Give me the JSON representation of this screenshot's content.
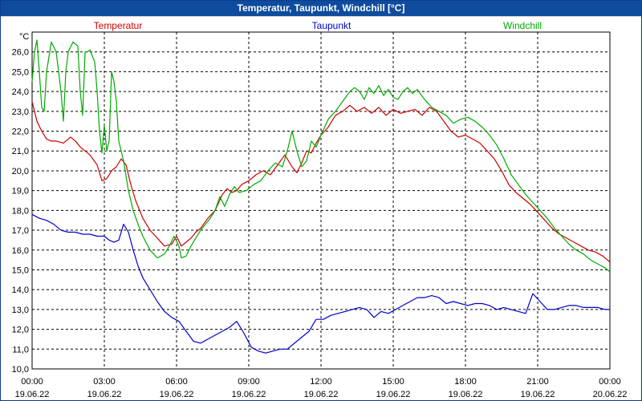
{
  "window": {
    "title": "Temperatur, Taupunkt, Windchill [°C]"
  },
  "colors": {
    "titlebar": "#0f4c9e",
    "temperature": "#cc0000",
    "dewpoint": "#0000cc",
    "windchill": "#00aa00",
    "grid": "#000000"
  },
  "chart_data": {
    "type": "line",
    "title": "Temperatur, Taupunkt, Windchill [°C]",
    "ylabel": "°C",
    "ylim": [
      10.0,
      27.0
    ],
    "xlim": [
      0,
      24
    ],
    "grid": true,
    "y_ticks": [
      "10,0",
      "11,0",
      "12,0",
      "13,0",
      "14,0",
      "15,0",
      "16,0",
      "17,0",
      "18,0",
      "19,0",
      "20,0",
      "21,0",
      "22,0",
      "23,0",
      "24,0",
      "25,0",
      "26,0"
    ],
    "x_ticks": [
      {
        "time": "00:00",
        "date": "19.06.22"
      },
      {
        "time": "03:00",
        "date": "19.06.22"
      },
      {
        "time": "06:00",
        "date": "19.06.22"
      },
      {
        "time": "09:00",
        "date": "19.06.22"
      },
      {
        "time": "12:00",
        "date": "19.06.22"
      },
      {
        "time": "15:00",
        "date": "19.06.22"
      },
      {
        "time": "18:00",
        "date": "19.06.22"
      },
      {
        "time": "21:00",
        "date": "19.06.22"
      },
      {
        "time": "00:00",
        "date": "20.06.22"
      }
    ],
    "series": [
      {
        "name": "Temperatur",
        "color": "#cc0000",
        "legend_pos": "left",
        "x": [
          0,
          0.2,
          0.4,
          0.6,
          0.8,
          1.0,
          1.3,
          1.6,
          1.8,
          2.0,
          2.2,
          2.4,
          2.7,
          2.9,
          3.1,
          3.3,
          3.5,
          3.7,
          3.9,
          4.1,
          4.3,
          4.6,
          4.9,
          5.2,
          5.5,
          5.8,
          6.0,
          6.2,
          6.4,
          6.6,
          6.8,
          7.0,
          7.3,
          7.6,
          7.9,
          8.1,
          8.3,
          8.5,
          8.7,
          9.0,
          9.3,
          9.6,
          9.9,
          10.2,
          10.5,
          10.8,
          11.0,
          11.2,
          11.4,
          11.6,
          11.8,
          12.0,
          12.3,
          12.6,
          12.9,
          13.2,
          13.5,
          13.8,
          14.1,
          14.4,
          14.7,
          15.0,
          15.3,
          15.6,
          15.9,
          16.2,
          16.5,
          16.8,
          17.1,
          17.4,
          17.7,
          18.0,
          18.3,
          18.6,
          18.9,
          19.2,
          19.5,
          19.8,
          20.1,
          20.4,
          20.7,
          21.0,
          21.3,
          21.6,
          21.9,
          22.2,
          22.5,
          22.8,
          23.1,
          23.4,
          23.7,
          24.0
        ],
        "values": [
          23.5,
          22.5,
          22.0,
          21.6,
          21.5,
          21.5,
          21.4,
          21.7,
          21.5,
          21.2,
          21.0,
          20.8,
          20.3,
          19.5,
          19.6,
          20.0,
          20.2,
          20.6,
          20.3,
          19.3,
          18.5,
          17.6,
          17.0,
          16.6,
          16.2,
          16.3,
          16.7,
          16.2,
          16.4,
          16.6,
          16.9,
          17.1,
          17.6,
          18.0,
          18.8,
          19.1,
          18.9,
          19.0,
          19.3,
          19.5,
          19.8,
          20.0,
          19.8,
          20.3,
          20.8,
          20.2,
          19.9,
          20.4,
          21.0,
          20.9,
          21.4,
          21.8,
          22.2,
          22.8,
          23.0,
          23.3,
          23.0,
          23.2,
          22.9,
          23.2,
          22.8,
          23.1,
          22.9,
          23.0,
          23.1,
          22.8,
          23.2,
          23.0,
          22.5,
          22.0,
          21.7,
          21.8,
          21.6,
          21.4,
          21.0,
          20.6,
          20.0,
          19.3,
          18.9,
          18.6,
          18.3,
          17.9,
          17.5,
          17.1,
          16.8,
          16.6,
          16.4,
          16.2,
          16.0,
          15.9,
          15.7,
          15.4
        ]
      },
      {
        "name": "Taupunkt",
        "color": "#0000cc",
        "legend_pos": "center",
        "x": [
          0,
          0.3,
          0.6,
          0.9,
          1.2,
          1.5,
          1.8,
          2.1,
          2.4,
          2.7,
          3.0,
          3.2,
          3.4,
          3.6,
          3.8,
          4.0,
          4.2,
          4.4,
          4.6,
          4.9,
          5.2,
          5.5,
          5.8,
          6.1,
          6.4,
          6.7,
          7.0,
          7.3,
          7.6,
          7.9,
          8.2,
          8.5,
          8.8,
          9.1,
          9.4,
          9.7,
          10.0,
          10.3,
          10.6,
          10.9,
          11.2,
          11.5,
          11.8,
          12.1,
          12.4,
          12.7,
          13.0,
          13.3,
          13.6,
          13.9,
          14.2,
          14.5,
          14.8,
          15.1,
          15.4,
          15.7,
          16.0,
          16.3,
          16.6,
          16.9,
          17.2,
          17.5,
          17.8,
          18.1,
          18.4,
          18.7,
          19.0,
          19.3,
          19.6,
          19.9,
          20.2,
          20.5,
          20.8,
          21.1,
          21.4,
          21.7,
          22.0,
          22.3,
          22.6,
          22.9,
          23.2,
          23.5,
          23.8,
          24.0
        ],
        "values": [
          17.8,
          17.6,
          17.5,
          17.3,
          17.0,
          16.9,
          16.9,
          16.8,
          16.8,
          16.7,
          16.7,
          16.5,
          16.4,
          16.5,
          17.3,
          16.9,
          16.0,
          15.2,
          14.6,
          14.0,
          13.4,
          12.9,
          12.6,
          12.4,
          11.9,
          11.4,
          11.3,
          11.5,
          11.7,
          11.9,
          12.1,
          12.4,
          11.8,
          11.1,
          10.9,
          10.8,
          10.9,
          11.0,
          11.0,
          11.3,
          11.6,
          11.9,
          12.5,
          12.5,
          12.7,
          12.8,
          12.9,
          13.0,
          13.1,
          13.0,
          12.6,
          12.9,
          12.8,
          13.0,
          13.2,
          13.4,
          13.6,
          13.6,
          13.7,
          13.6,
          13.3,
          13.4,
          13.3,
          13.2,
          13.3,
          13.3,
          13.2,
          13.0,
          13.1,
          13.0,
          12.9,
          12.8,
          13.8,
          13.4,
          13.0,
          13.0,
          13.1,
          13.2,
          13.2,
          13.1,
          13.1,
          13.1,
          13.0,
          13.0
        ]
      },
      {
        "name": "Windchill",
        "color": "#00aa00",
        "legend_pos": "right",
        "x": [
          0,
          0.1,
          0.2,
          0.3,
          0.4,
          0.5,
          0.6,
          0.8,
          1.0,
          1.1,
          1.2,
          1.3,
          1.4,
          1.5,
          1.7,
          1.9,
          2.0,
          2.1,
          2.2,
          2.3,
          2.4,
          2.6,
          2.7,
          2.8,
          2.9,
          3.0,
          3.1,
          3.2,
          3.3,
          3.4,
          3.5,
          3.6,
          3.8,
          4.0,
          4.2,
          4.4,
          4.6,
          4.9,
          5.2,
          5.5,
          5.7,
          5.9,
          6.1,
          6.2,
          6.4,
          6.6,
          6.8,
          7.0,
          7.2,
          7.4,
          7.6,
          7.8,
          8.0,
          8.2,
          8.4,
          8.6,
          8.9,
          9.2,
          9.5,
          9.8,
          10.1,
          10.4,
          10.6,
          10.8,
          11.0,
          11.2,
          11.4,
          11.6,
          11.8,
          12.0,
          12.3,
          12.6,
          12.9,
          13.2,
          13.4,
          13.6,
          13.8,
          14.0,
          14.2,
          14.4,
          14.6,
          14.8,
          15.0,
          15.2,
          15.4,
          15.6,
          15.8,
          16.0,
          16.3,
          16.6,
          16.9,
          17.2,
          17.5,
          17.8,
          18.1,
          18.4,
          18.7,
          19.0,
          19.3,
          19.6,
          19.9,
          20.2,
          20.5,
          20.8,
          21.1,
          21.4,
          21.7,
          22.0,
          22.3,
          22.6,
          22.9,
          23.2,
          23.5,
          23.8,
          24.0
        ],
        "values": [
          24.5,
          26.0,
          26.6,
          25.0,
          23.2,
          23.0,
          25.0,
          26.5,
          26.0,
          25.0,
          24.0,
          22.5,
          25.0,
          26.0,
          26.5,
          26.3,
          24.0,
          22.8,
          26.0,
          26.0,
          26.1,
          25.5,
          24.0,
          22.0,
          20.9,
          22.3,
          21.0,
          21.5,
          25.0,
          24.5,
          23.5,
          21.5,
          20.5,
          19.0,
          18.0,
          17.3,
          16.7,
          16.0,
          15.6,
          15.8,
          16.2,
          16.7,
          16.2,
          15.6,
          15.7,
          16.2,
          16.6,
          17.0,
          17.3,
          17.6,
          18.0,
          18.7,
          18.2,
          18.8,
          19.2,
          18.9,
          19.0,
          19.3,
          19.5,
          20.0,
          20.4,
          20.2,
          21.0,
          22.0,
          21.0,
          20.2,
          20.5,
          21.5,
          21.2,
          21.8,
          22.6,
          23.0,
          23.5,
          24.0,
          24.2,
          24.0,
          23.6,
          24.2,
          23.9,
          24.3,
          23.8,
          24.1,
          23.7,
          23.6,
          24.0,
          24.2,
          23.9,
          24.1,
          23.6,
          23.2,
          23.0,
          22.8,
          22.4,
          22.6,
          22.7,
          22.5,
          22.2,
          21.8,
          21.3,
          20.6,
          19.8,
          19.3,
          18.8,
          18.4,
          18.0,
          17.6,
          17.1,
          16.7,
          16.3,
          16.0,
          15.8,
          15.5,
          15.3,
          15.1,
          14.9
        ]
      }
    ]
  }
}
